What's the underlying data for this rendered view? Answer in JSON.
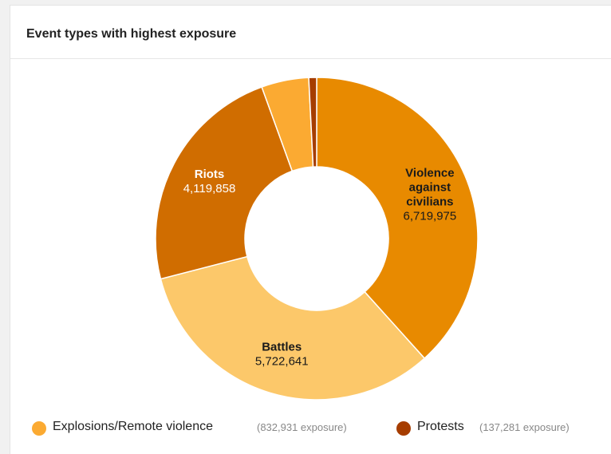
{
  "card": {
    "title": "Event types with highest exposure"
  },
  "chart_data": {
    "type": "pie",
    "donut": true,
    "slices": [
      {
        "name": "Violence against civilians",
        "label_lines": [
          "Violence",
          "against",
          "civilians"
        ],
        "value_text": "6,719,975",
        "value": 6719975,
        "color": "#e88a00"
      },
      {
        "name": "Battles",
        "label_lines": [
          "Battles"
        ],
        "value_text": "5,722,641",
        "value": 5722641,
        "color": "#fcc86a"
      },
      {
        "name": "Riots",
        "label_lines": [
          "Riots"
        ],
        "value_text": "4,119,858",
        "value": 4119858,
        "color": "#d06d00"
      },
      {
        "name": "Explosions/Remote violence",
        "label_lines": [],
        "value_text": "832,931",
        "value": 832931,
        "color": "#fbaa32"
      },
      {
        "name": "Protests",
        "label_lines": [],
        "value_text": "137,281",
        "value": 137281,
        "color": "#a63d00"
      }
    ],
    "legend": [
      {
        "name": "Explosions/Remote violence",
        "meta": "(832,931 exposure)",
        "color": "#fbaa32"
      },
      {
        "name": "Protests",
        "meta": "(137,281 exposure)",
        "color": "#a63d00"
      }
    ]
  }
}
